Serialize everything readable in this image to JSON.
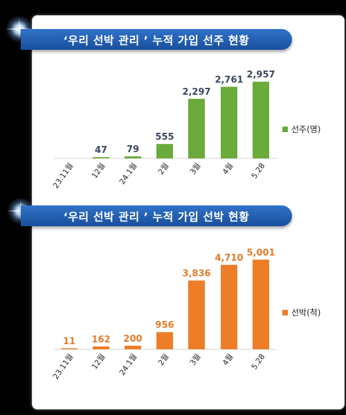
{
  "chart_data": [
    {
      "type": "bar",
      "title": "‘우리 선박 관리 ’  누적 가입 선주 현황",
      "categories": [
        "23.11월",
        "12월",
        "24.1월",
        "2월",
        "3월",
        "4월",
        "5.28"
      ],
      "series": [
        {
          "name": "선주(명)",
          "values": [
            null,
            47,
            79,
            555,
            2297,
            2761,
            2957
          ]
        }
      ],
      "value_labels": [
        "",
        "47",
        "79",
        "555",
        "2,297",
        "2,761",
        "2,957"
      ],
      "color": "#6aab3c",
      "label_color": "#3a4660",
      "ylim": [
        0,
        3200
      ],
      "grid": false,
      "legend": "right"
    },
    {
      "type": "bar",
      "title": "‘우리 선박 관리 ’  누적 가입 선박 현황",
      "categories": [
        "23.11월",
        "12월",
        "24.1월",
        "2월",
        "3월",
        "4월",
        "5.28"
      ],
      "series": [
        {
          "name": "선박(척)",
          "values": [
            11,
            162,
            200,
            956,
            3836,
            4710,
            5001
          ]
        }
      ],
      "value_labels": [
        "11",
        "162",
        "200",
        "956",
        "3,836",
        "4,710",
        "5,001"
      ],
      "color": "#ee7d28",
      "label_color": "#e07a2a",
      "ylim": [
        0,
        5400
      ],
      "grid": false,
      "legend": "right"
    }
  ]
}
